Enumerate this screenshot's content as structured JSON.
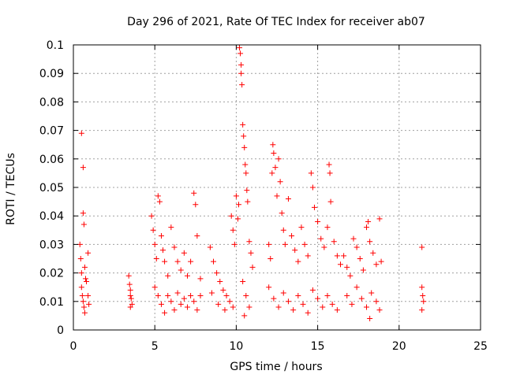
{
  "chart_data": {
    "type": "scatter",
    "title": "Day 296 of 2021, Rate Of TEC Index for receiver ab07",
    "xlabel": "GPS time / hours",
    "ylabel": "ROTI / TECUs",
    "xlim": [
      0,
      25
    ],
    "ylim": [
      0,
      0.1
    ],
    "xticks": [
      "0",
      "5",
      "10",
      "15",
      "20",
      "25"
    ],
    "yticks": [
      "0",
      "0.01",
      "0.02",
      "0.03",
      "0.04",
      "0.05",
      "0.06",
      "0.07",
      "0.08",
      "0.09",
      "0.1"
    ],
    "grid": true,
    "marker": "+",
    "color": "#ff0000",
    "series": [
      {
        "points": [
          [
            0.4,
            0.03
          ],
          [
            0.45,
            0.025
          ],
          [
            0.5,
            0.02
          ],
          [
            0.5,
            0.015
          ],
          [
            0.55,
            0.012
          ],
          [
            0.6,
            0.01
          ],
          [
            0.65,
            0.008
          ],
          [
            0.7,
            0.006
          ],
          [
            0.5,
            0.069
          ],
          [
            0.6,
            0.057
          ],
          [
            0.6,
            0.041
          ],
          [
            0.65,
            0.037
          ],
          [
            0.7,
            0.022
          ],
          [
            0.75,
            0.018
          ],
          [
            0.9,
            0.027
          ],
          [
            0.9,
            0.012
          ],
          [
            0.95,
            0.009
          ],
          [
            0.8,
            0.017
          ],
          [
            3.4,
            0.019
          ],
          [
            3.45,
            0.016
          ],
          [
            3.5,
            0.014
          ],
          [
            3.5,
            0.012
          ],
          [
            3.55,
            0.011
          ],
          [
            3.6,
            0.009
          ],
          [
            3.5,
            0.008
          ],
          [
            4.8,
            0.04
          ],
          [
            4.9,
            0.035
          ],
          [
            5.0,
            0.03
          ],
          [
            5.1,
            0.025
          ],
          [
            5.2,
            0.047
          ],
          [
            5.3,
            0.045
          ],
          [
            5.4,
            0.033
          ],
          [
            5.5,
            0.028
          ],
          [
            5.6,
            0.024
          ],
          [
            5.8,
            0.019
          ],
          [
            6.0,
            0.036
          ],
          [
            6.2,
            0.029
          ],
          [
            6.4,
            0.024
          ],
          [
            6.6,
            0.021
          ],
          [
            6.8,
            0.027
          ],
          [
            7.0,
            0.019
          ],
          [
            7.2,
            0.024
          ],
          [
            7.4,
            0.048
          ],
          [
            7.5,
            0.044
          ],
          [
            7.6,
            0.033
          ],
          [
            7.8,
            0.018
          ],
          [
            5.0,
            0.015
          ],
          [
            5.2,
            0.012
          ],
          [
            5.4,
            0.009
          ],
          [
            5.6,
            0.006
          ],
          [
            5.8,
            0.012
          ],
          [
            6.0,
            0.01
          ],
          [
            6.2,
            0.007
          ],
          [
            6.4,
            0.013
          ],
          [
            6.6,
            0.009
          ],
          [
            6.8,
            0.011
          ],
          [
            7.0,
            0.008
          ],
          [
            7.2,
            0.012
          ],
          [
            7.4,
            0.01
          ],
          [
            7.6,
            0.007
          ],
          [
            7.8,
            0.012
          ],
          [
            8.4,
            0.029
          ],
          [
            8.6,
            0.024
          ],
          [
            8.8,
            0.02
          ],
          [
            9.0,
            0.017
          ],
          [
            9.2,
            0.014
          ],
          [
            9.4,
            0.012
          ],
          [
            9.6,
            0.01
          ],
          [
            9.8,
            0.008
          ],
          [
            8.5,
            0.013
          ],
          [
            8.9,
            0.009
          ],
          [
            9.3,
            0.007
          ],
          [
            9.7,
            0.04
          ],
          [
            9.8,
            0.035
          ],
          [
            9.9,
            0.03
          ],
          [
            10.0,
            0.047
          ],
          [
            10.1,
            0.039
          ],
          [
            10.15,
            0.044
          ],
          [
            10.2,
            0.099
          ],
          [
            10.25,
            0.097
          ],
          [
            10.3,
            0.093
          ],
          [
            10.3,
            0.09
          ],
          [
            10.35,
            0.086
          ],
          [
            10.4,
            0.072
          ],
          [
            10.45,
            0.068
          ],
          [
            10.5,
            0.064
          ],
          [
            10.55,
            0.058
          ],
          [
            10.6,
            0.055
          ],
          [
            10.65,
            0.049
          ],
          [
            10.7,
            0.045
          ],
          [
            10.8,
            0.031
          ],
          [
            10.9,
            0.027
          ],
          [
            11.0,
            0.022
          ],
          [
            10.4,
            0.017
          ],
          [
            10.6,
            0.012
          ],
          [
            10.8,
            0.008
          ],
          [
            10.5,
            0.005
          ],
          [
            12.0,
            0.03
          ],
          [
            12.1,
            0.025
          ],
          [
            12.2,
            0.055
          ],
          [
            12.25,
            0.065
          ],
          [
            12.3,
            0.062
          ],
          [
            12.4,
            0.057
          ],
          [
            12.5,
            0.047
          ],
          [
            12.6,
            0.06
          ],
          [
            12.7,
            0.052
          ],
          [
            12.8,
            0.041
          ],
          [
            12.9,
            0.035
          ],
          [
            13.0,
            0.03
          ],
          [
            13.2,
            0.046
          ],
          [
            13.4,
            0.033
          ],
          [
            13.6,
            0.028
          ],
          [
            13.8,
            0.024
          ],
          [
            14.0,
            0.036
          ],
          [
            14.2,
            0.03
          ],
          [
            14.4,
            0.026
          ],
          [
            14.6,
            0.055
          ],
          [
            14.7,
            0.05
          ],
          [
            14.8,
            0.043
          ],
          [
            15.0,
            0.038
          ],
          [
            15.2,
            0.032
          ],
          [
            15.4,
            0.029
          ],
          [
            15.6,
            0.036
          ],
          [
            15.7,
            0.058
          ],
          [
            15.75,
            0.055
          ],
          [
            15.8,
            0.045
          ],
          [
            16.0,
            0.031
          ],
          [
            16.2,
            0.026
          ],
          [
            16.4,
            0.023
          ],
          [
            12.0,
            0.015
          ],
          [
            12.3,
            0.011
          ],
          [
            12.6,
            0.008
          ],
          [
            12.9,
            0.013
          ],
          [
            13.2,
            0.01
          ],
          [
            13.5,
            0.007
          ],
          [
            13.8,
            0.012
          ],
          [
            14.1,
            0.009
          ],
          [
            14.4,
            0.006
          ],
          [
            14.7,
            0.014
          ],
          [
            15.0,
            0.011
          ],
          [
            15.3,
            0.008
          ],
          [
            15.6,
            0.012
          ],
          [
            15.9,
            0.009
          ],
          [
            16.2,
            0.007
          ],
          [
            16.6,
            0.026
          ],
          [
            16.8,
            0.022
          ],
          [
            17.0,
            0.019
          ],
          [
            17.2,
            0.032
          ],
          [
            17.4,
            0.029
          ],
          [
            17.6,
            0.025
          ],
          [
            17.8,
            0.021
          ],
          [
            18.0,
            0.036
          ],
          [
            18.1,
            0.038
          ],
          [
            18.2,
            0.031
          ],
          [
            18.4,
            0.027
          ],
          [
            18.6,
            0.023
          ],
          [
            18.8,
            0.039
          ],
          [
            18.9,
            0.024
          ],
          [
            16.8,
            0.012
          ],
          [
            17.1,
            0.009
          ],
          [
            17.4,
            0.015
          ],
          [
            17.7,
            0.011
          ],
          [
            18.0,
            0.008
          ],
          [
            18.3,
            0.013
          ],
          [
            18.6,
            0.01
          ],
          [
            18.8,
            0.007
          ],
          [
            18.2,
            0.004
          ],
          [
            21.4,
            0.029
          ],
          [
            21.4,
            0.015
          ],
          [
            21.45,
            0.012
          ],
          [
            21.5,
            0.01
          ],
          [
            21.4,
            0.007
          ]
        ]
      }
    ]
  }
}
